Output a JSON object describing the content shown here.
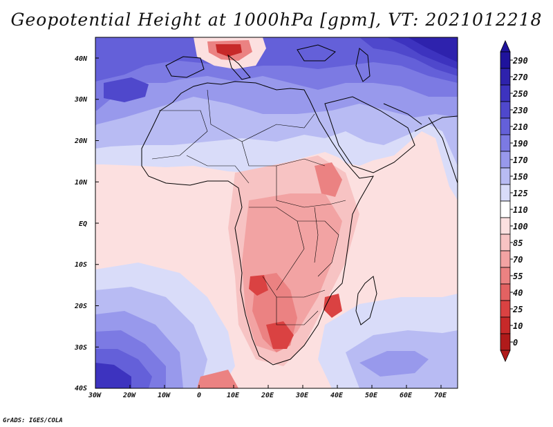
{
  "title": "Geopotential Height at 1000hPa [gpm], VT: 2021012218",
  "credit": "GrADS: IGES/COLA",
  "lat_labels": [
    "40N",
    "30N",
    "20N",
    "10N",
    "EQ",
    "10S",
    "20S",
    "30S",
    "40S"
  ],
  "lon_labels": [
    "30W",
    "20W",
    "10W",
    "0",
    "10E",
    "20E",
    "30E",
    "40E",
    "50E",
    "60E",
    "70E"
  ],
  "colorbar": {
    "labels": [
      "290",
      "270",
      "250",
      "230",
      "210",
      "190",
      "170",
      "150",
      "125",
      "110",
      "100",
      "85",
      "70",
      "55",
      "40",
      "25",
      "10",
      "0"
    ],
    "colors": [
      "#1f139c",
      "#2e22ad",
      "#3d33bf",
      "#4f48cc",
      "#6460d9",
      "#7c7ae3",
      "#9899ec",
      "#b8bbf3",
      "#d9dcf9",
      "#ffffff",
      "#fce0e0",
      "#f7c3c3",
      "#f2a3a3",
      "#eb8282",
      "#e36262",
      "#da4242",
      "#c72929",
      "#b01a1a"
    ]
  },
  "map_data": {
    "region": "Africa and surrounding oceans",
    "lon_range": [
      -30,
      75
    ],
    "lat_range": [
      -40,
      45
    ],
    "variable": "Geopotential Height at 1000hPa",
    "units": "gpm",
    "valid_time": "2021012218"
  }
}
